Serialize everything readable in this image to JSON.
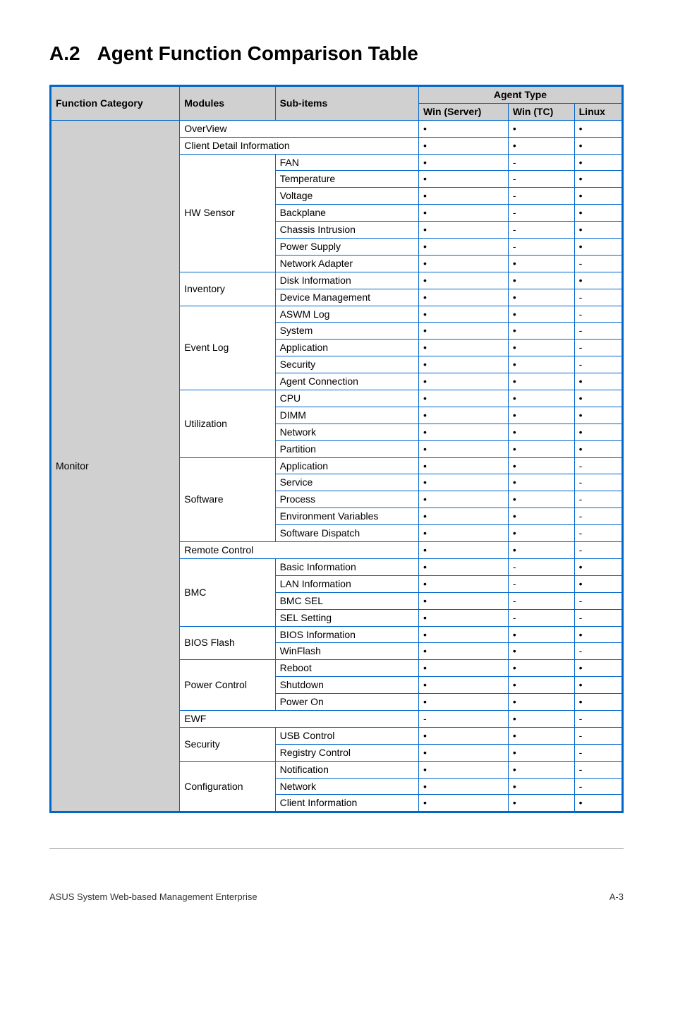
{
  "title": {
    "num": "A.2",
    "text": "Agent Function Comparison Table"
  },
  "headers": {
    "func_cat": "Function Category",
    "modules": "Modules",
    "sub_items": "Sub-items",
    "agent_type": "Agent Type",
    "win_server": "Win (Server)",
    "win_tc": "Win (TC)",
    "linux": "Linux"
  },
  "category": "Monitor",
  "groups": [
    {
      "module": "OverView",
      "rows": [
        {
          "sub": "",
          "ws": "•",
          "wt": "•",
          "lx": "•"
        }
      ]
    },
    {
      "module": "Client Detail Information",
      "rows": [
        {
          "sub": "",
          "ws": "•",
          "wt": "•",
          "lx": "•"
        }
      ]
    },
    {
      "module": "HW Sensor",
      "rows": [
        {
          "sub": "FAN",
          "ws": "•",
          "wt": "-",
          "lx": "•"
        },
        {
          "sub": "Temperature",
          "ws": "•",
          "wt": "-",
          "lx": "•"
        },
        {
          "sub": "Voltage",
          "ws": "•",
          "wt": "-",
          "lx": "•"
        },
        {
          "sub": "Backplane",
          "ws": "•",
          "wt": "-",
          "lx": "•"
        },
        {
          "sub": "Chassis Intrusion",
          "ws": "•",
          "wt": "-",
          "lx": "•"
        },
        {
          "sub": "Power Supply",
          "ws": "•",
          "wt": "-",
          "lx": "•"
        },
        {
          "sub": "Network Adapter",
          "ws": "•",
          "wt": "•",
          "lx": "-"
        }
      ]
    },
    {
      "module": "Inventory",
      "rows": [
        {
          "sub": "Disk Information",
          "ws": "•",
          "wt": "•",
          "lx": "•"
        },
        {
          "sub": "Device Management",
          "ws": "•",
          "wt": "•",
          "lx": "-"
        }
      ]
    },
    {
      "module": "Event Log",
      "rows": [
        {
          "sub": "ASWM Log",
          "ws": "•",
          "wt": "•",
          "lx": "-"
        },
        {
          "sub": "System",
          "ws": "•",
          "wt": "•",
          "lx": "-"
        },
        {
          "sub": "Application",
          "ws": "•",
          "wt": "•",
          "lx": "-"
        },
        {
          "sub": "Security",
          "ws": "•",
          "wt": "•",
          "lx": "-"
        },
        {
          "sub": "Agent Connection",
          "ws": "•",
          "wt": "•",
          "lx": "•"
        }
      ]
    },
    {
      "module": "Utilization",
      "rows": [
        {
          "sub": "CPU",
          "ws": "•",
          "wt": "•",
          "lx": "•"
        },
        {
          "sub": "DIMM",
          "ws": "•",
          "wt": "•",
          "lx": "•"
        },
        {
          "sub": "Network",
          "ws": "•",
          "wt": "•",
          "lx": "•"
        },
        {
          "sub": "Partition",
          "ws": "•",
          "wt": "•",
          "lx": "•"
        }
      ]
    },
    {
      "module": "Software",
      "rows": [
        {
          "sub": "Application",
          "ws": "•",
          "wt": "•",
          "lx": "-"
        },
        {
          "sub": "Service",
          "ws": "•",
          "wt": "•",
          "lx": "-"
        },
        {
          "sub": "Process",
          "ws": "•",
          "wt": "•",
          "lx": "-"
        },
        {
          "sub": "Environment Variables",
          "ws": "•",
          "wt": "•",
          "lx": "-"
        },
        {
          "sub": "Software Dispatch",
          "ws": "•",
          "wt": "•",
          "lx": "-"
        }
      ]
    },
    {
      "module": "Remote Control",
      "rows": [
        {
          "sub": "",
          "ws": "•",
          "wt": "•",
          "lx": "-"
        }
      ]
    },
    {
      "module": "BMC",
      "rows": [
        {
          "sub": "Basic Information",
          "ws": "•",
          "wt": "-",
          "lx": "•"
        },
        {
          "sub": "LAN Information",
          "ws": "•",
          "wt": "-",
          "lx": "•"
        },
        {
          "sub": "BMC SEL",
          "ws": "•",
          "wt": "-",
          "lx": "-"
        },
        {
          "sub": "SEL Setting",
          "ws": "•",
          "wt": "-",
          "lx": "-"
        }
      ]
    },
    {
      "module": "BIOS Flash",
      "rows": [
        {
          "sub": "BIOS Information",
          "ws": "•",
          "wt": "•",
          "lx": "•"
        },
        {
          "sub": "WinFlash",
          "ws": "•",
          "wt": "•",
          "lx": "-"
        }
      ]
    },
    {
      "module": "Power Control",
      "rows": [
        {
          "sub": "Reboot",
          "ws": "•",
          "wt": "•",
          "lx": "•"
        },
        {
          "sub": "Shutdown",
          "ws": "•",
          "wt": "•",
          "lx": "•"
        },
        {
          "sub": "Power On",
          "ws": "•",
          "wt": "•",
          "lx": "•"
        }
      ]
    },
    {
      "module": "EWF",
      "rows": [
        {
          "sub": "",
          "ws": "-",
          "wt": "•",
          "lx": "-"
        }
      ]
    },
    {
      "module": "Security",
      "rows": [
        {
          "sub": "USB Control",
          "ws": "•",
          "wt": "•",
          "lx": "-"
        },
        {
          "sub": "Registry Control",
          "ws": "•",
          "wt": "•",
          "lx": "-"
        }
      ]
    },
    {
      "module": "Configuration",
      "rows": [
        {
          "sub": "Notification",
          "ws": "•",
          "wt": "•",
          "lx": "-"
        },
        {
          "sub": "Network",
          "ws": "•",
          "wt": "•",
          "lx": "-"
        },
        {
          "sub": "Client Information",
          "ws": "•",
          "wt": "•",
          "lx": "•"
        }
      ]
    }
  ],
  "footer": {
    "left": "ASUS System Web-based Management Enterprise",
    "right": "A-3"
  }
}
